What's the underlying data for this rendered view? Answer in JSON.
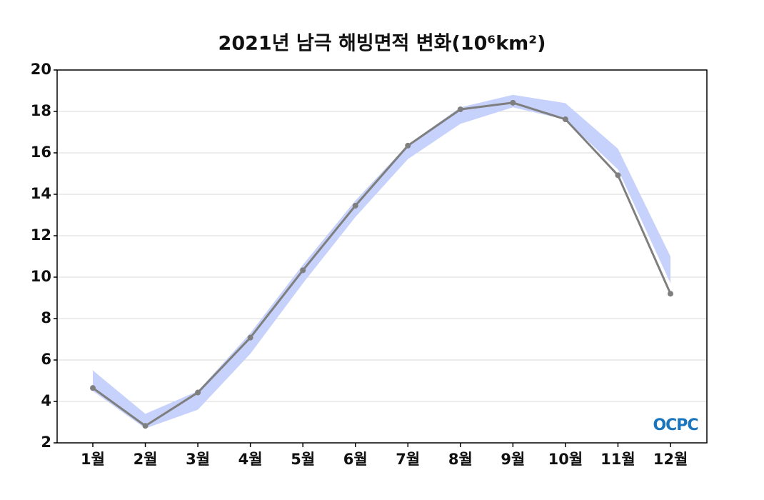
{
  "chart_data": {
    "type": "line",
    "title": "2021년 남극 해빙면적 변화(10⁶km²)",
    "categories": [
      "1월",
      "2월",
      "3월",
      "4월",
      "5월",
      "6월",
      "7월",
      "8월",
      "9월",
      "10월",
      "11월",
      "12월"
    ],
    "series": [
      {
        "color": "#7f7f7f",
        "values": [
          4.65,
          2.82,
          4.43,
          7.08,
          10.33,
          13.45,
          16.35,
          18.1,
          18.42,
          17.62,
          14.92,
          9.2
        ]
      }
    ],
    "band": {
      "color": "#c6d2fb",
      "upper": [
        5.5,
        3.4,
        4.5,
        7.3,
        10.6,
        13.7,
        16.4,
        18.2,
        18.8,
        18.4,
        16.2,
        11.0
      ],
      "lower": [
        4.5,
        2.7,
        3.6,
        6.3,
        9.7,
        12.9,
        15.7,
        17.4,
        18.2,
        17.6,
        15.2,
        9.7
      ]
    },
    "ylim": [
      2,
      20
    ],
    "yticks": [
      2,
      4,
      6,
      8,
      10,
      12,
      14,
      16,
      18,
      20
    ],
    "grid": true,
    "logo": "OCPC"
  }
}
